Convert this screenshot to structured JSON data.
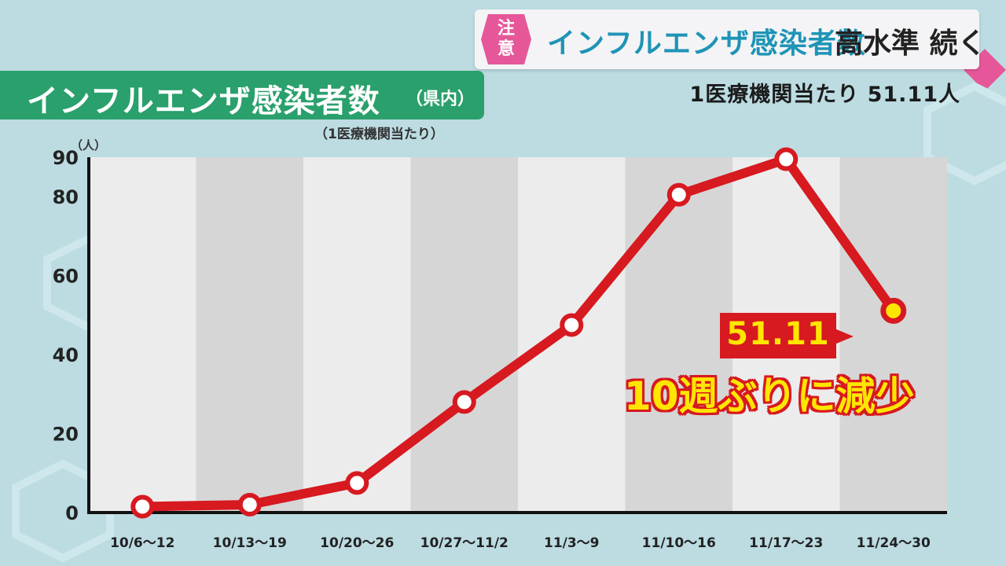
{
  "banner": {
    "badge": "注意",
    "title": "インフルエンザ感染者数",
    "title2": "高水準 続く",
    "subline": "1医療機関当たり 51.11人"
  },
  "chart_header": {
    "title": "インフルエンザ感染者数",
    "title_suffix": "（県内）",
    "note": "（1医療機関当たり）"
  },
  "callout": {
    "value": "51.11",
    "text": "10週ぶりに減少"
  },
  "colors": {
    "line": "#d71920",
    "band_light": "#ececec",
    "band_dark": "#d6d6d6",
    "accent_yellow": "#ffe600",
    "title_green": "#2aa06c"
  },
  "chart_data": {
    "type": "line",
    "ylabel": "（人）",
    "ylim": [
      0,
      90
    ],
    "yticks": [
      0,
      20,
      40,
      60,
      80,
      90
    ],
    "categories": [
      "10/6～12",
      "10/13～19",
      "10/20～26",
      "10/27～11/2",
      "11/3～9",
      "11/10～16",
      "11/17～23",
      "11/24～30"
    ],
    "series": [
      {
        "values": [
          1.5,
          2,
          7.5,
          28,
          47.5,
          80.5,
          89.5,
          51.11
        ]
      }
    ],
    "grid": false,
    "legend": "none"
  }
}
